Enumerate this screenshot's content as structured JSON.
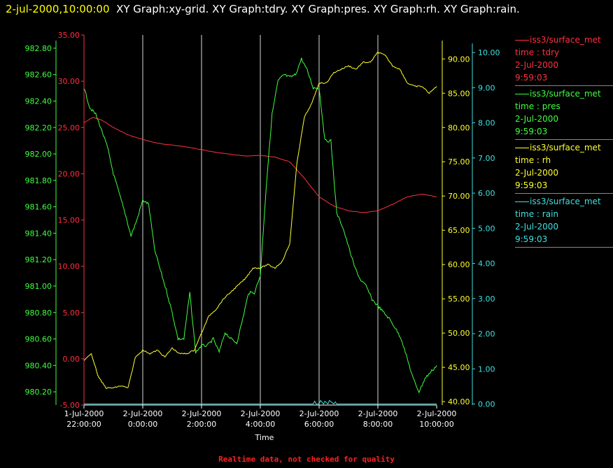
{
  "header": {
    "timestamp": "2-jul-2000,10:00:00",
    "titles": "XY Graph:xy-grid.  XY Graph:tdry.  XY Graph:pres.  XY Graph:rh.  XY Graph:rain."
  },
  "footer": {
    "text": "Realtime data, not checked for quality",
    "color": "#ff2020"
  },
  "legend": [
    {
      "name": "iss3/surface_met",
      "field": "time : tdry",
      "date": "2-Jul-2000",
      "time": "9:59:03",
      "color": "#ff3040"
    },
    {
      "name": "iss3/surface_met",
      "field": "time : pres",
      "date": "2-Jul-2000",
      "time": "9:59:03",
      "color": "#40ff40"
    },
    {
      "name": "iss3/surface_met",
      "field": "time : rh",
      "date": "2-Jul-2000",
      "time": "9:59:03",
      "color": "#ffff30"
    },
    {
      "name": "iss3/surface_met",
      "field": "time : rain",
      "date": "2-Jul-2000",
      "time": "9:59:03",
      "color": "#40e0e0"
    }
  ],
  "chart_data": {
    "type": "line",
    "xlabel": "Time",
    "x_ticks": [
      {
        "d": "1-Jul-2000",
        "t": "22:00:00"
      },
      {
        "d": "2-Jul-2000",
        "t": "0:00:00"
      },
      {
        "d": "2-Jul-2000",
        "t": "2:00:00"
      },
      {
        "d": "2-Jul-2000",
        "t": "4:00:00"
      },
      {
        "d": "2-Jul-2000",
        "t": "6:00:00"
      },
      {
        "d": "2-Jul-2000",
        "t": "8:00:00"
      },
      {
        "d": "2-Jul-2000",
        "t": "10:00:00"
      }
    ],
    "xlim": [
      "1-Jul-2000 22:00:00",
      "2-Jul-2000 10:00:00"
    ],
    "grid": "vertical",
    "axes": {
      "pres": {
        "color": "#40ff40",
        "ylim": [
          980.1,
          982.9
        ],
        "ticks": [
          "980.20",
          "980.40",
          "980.60",
          "980.80",
          "981.00",
          "981.20",
          "981.40",
          "981.60",
          "981.80",
          "982.00",
          "982.20",
          "982.40",
          "982.60",
          "982.80"
        ]
      },
      "tdry": {
        "color": "#ff3040",
        "ylim": [
          -5,
          35
        ],
        "ticks": [
          "-5.00",
          "0.00",
          "5.00",
          "10.00",
          "15.00",
          "20.00",
          "25.00",
          "30.00",
          "35.00"
        ]
      },
      "rh": {
        "color": "#ffff30",
        "ylim": [
          39.5,
          93.5
        ],
        "ticks": [
          "40.00",
          "45.00",
          "50.00",
          "55.00",
          "60.00",
          "65.00",
          "70.00",
          "75.00",
          "80.00",
          "85.00",
          "90.00"
        ]
      },
      "rain": {
        "color": "#40e0e0",
        "ylim": [
          -0.03,
          10.5
        ],
        "ticks": [
          "0.00",
          "1.00",
          "2.00",
          "3.00",
          "4.00",
          "5.00",
          "6.00",
          "7.00",
          "8.00",
          "9.00",
          "10.00"
        ]
      }
    },
    "series": [
      {
        "name": "tdry",
        "axis": "tdry",
        "color": "#ff3040",
        "x": [
          0,
          0.3,
          0.6,
          1.0,
          1.5,
          2.0,
          2.5,
          3.0,
          3.5,
          4.0,
          4.5,
          5.0,
          5.5,
          6.0,
          6.5,
          7.0,
          7.5,
          8.0,
          8.5,
          9.0,
          9.5,
          10.0,
          10.5,
          11.0,
          11.5,
          12.0
        ],
        "y": [
          25.5,
          26.1,
          25.8,
          25.0,
          24.2,
          23.7,
          23.3,
          23.1,
          22.9,
          22.6,
          22.3,
          22.1,
          21.9,
          22.0,
          21.8,
          21.3,
          19.5,
          17.5,
          16.5,
          16.0,
          15.8,
          16.0,
          16.7,
          17.5,
          17.8,
          17.5
        ]
      },
      {
        "name": "pres",
        "axis": "pres",
        "color": "#40ff40",
        "x": [
          0,
          0.2,
          0.4,
          0.6,
          0.8,
          1.0,
          1.2,
          1.4,
          1.6,
          1.8,
          2.0,
          2.2,
          2.4,
          2.6,
          2.8,
          3.0,
          3.2,
          3.4,
          3.6,
          3.8,
          4.0,
          4.2,
          4.4,
          4.6,
          4.8,
          5.0,
          5.2,
          5.4,
          5.6,
          5.8,
          6.0,
          6.2,
          6.4,
          6.6,
          6.8,
          7.0,
          7.2,
          7.4,
          7.6,
          7.8,
          8.0,
          8.2,
          8.4,
          8.6,
          8.8,
          9.0,
          9.2,
          9.4,
          9.6,
          9.8,
          10.0,
          10.2,
          10.4,
          10.6,
          10.8,
          11.0,
          11.2,
          11.4,
          11.6,
          11.8,
          12.0
        ],
        "y": [
          982.5,
          982.35,
          982.3,
          982.18,
          982.05,
          981.85,
          981.7,
          981.55,
          981.38,
          981.5,
          981.65,
          981.62,
          981.28,
          981.12,
          980.97,
          980.8,
          980.6,
          980.6,
          980.95,
          980.5,
          980.55,
          980.55,
          980.6,
          980.5,
          980.65,
          980.6,
          980.57,
          980.75,
          980.95,
          980.95,
          981.08,
          981.75,
          982.3,
          982.55,
          982.6,
          982.58,
          982.6,
          982.72,
          982.63,
          982.5,
          982.5,
          982.1,
          982.1,
          981.55,
          981.45,
          981.3,
          981.15,
          981.05,
          981.0,
          980.9,
          980.85,
          980.8,
          980.75,
          980.68,
          980.6,
          980.45,
          980.3,
          980.2,
          980.3,
          980.35,
          980.4
        ]
      },
      {
        "name": "rh",
        "axis": "rh",
        "color": "#ffff30",
        "x": [
          0,
          0.25,
          0.5,
          0.75,
          1.0,
          1.25,
          1.5,
          1.75,
          2.0,
          2.25,
          2.5,
          2.75,
          3.0,
          3.25,
          3.5,
          3.75,
          4.0,
          4.25,
          4.5,
          4.75,
          5.0,
          5.25,
          5.5,
          5.75,
          6.0,
          6.25,
          6.5,
          6.75,
          7.0,
          7.25,
          7.5,
          7.75,
          8.0,
          8.25,
          8.5,
          8.75,
          9.0,
          9.25,
          9.5,
          9.75,
          10.0,
          10.25,
          10.5,
          10.75,
          11.0,
          11.25,
          11.5,
          11.75,
          12.0
        ],
        "y": [
          46.0,
          47.0,
          43.5,
          42.0,
          42.0,
          42.3,
          42.0,
          46.5,
          47.5,
          47.0,
          47.5,
          46.5,
          47.8,
          47.0,
          47.0,
          47.5,
          50.0,
          52.5,
          53.5,
          55.0,
          56.0,
          57.0,
          58.0,
          59.5,
          59.5,
          60.0,
          59.5,
          60.5,
          63.0,
          75.0,
          81.5,
          83.5,
          86.5,
          86.5,
          88.0,
          88.5,
          89.0,
          88.5,
          89.5,
          89.5,
          91.0,
          90.5,
          89.0,
          88.5,
          86.5,
          86.0,
          86.0,
          85.0,
          86.0
        ]
      },
      {
        "name": "rain",
        "axis": "rain",
        "color": "#40e0e0",
        "x": [
          0,
          7.8,
          7.85,
          7.9,
          8.0,
          8.05,
          8.15,
          8.2,
          8.3,
          8.35,
          8.5,
          8.55,
          8.6,
          12.0
        ],
        "y": [
          0,
          0,
          0.08,
          0,
          0,
          0.1,
          0,
          0.08,
          0,
          0.1,
          0,
          0.06,
          0,
          0
        ]
      }
    ]
  }
}
